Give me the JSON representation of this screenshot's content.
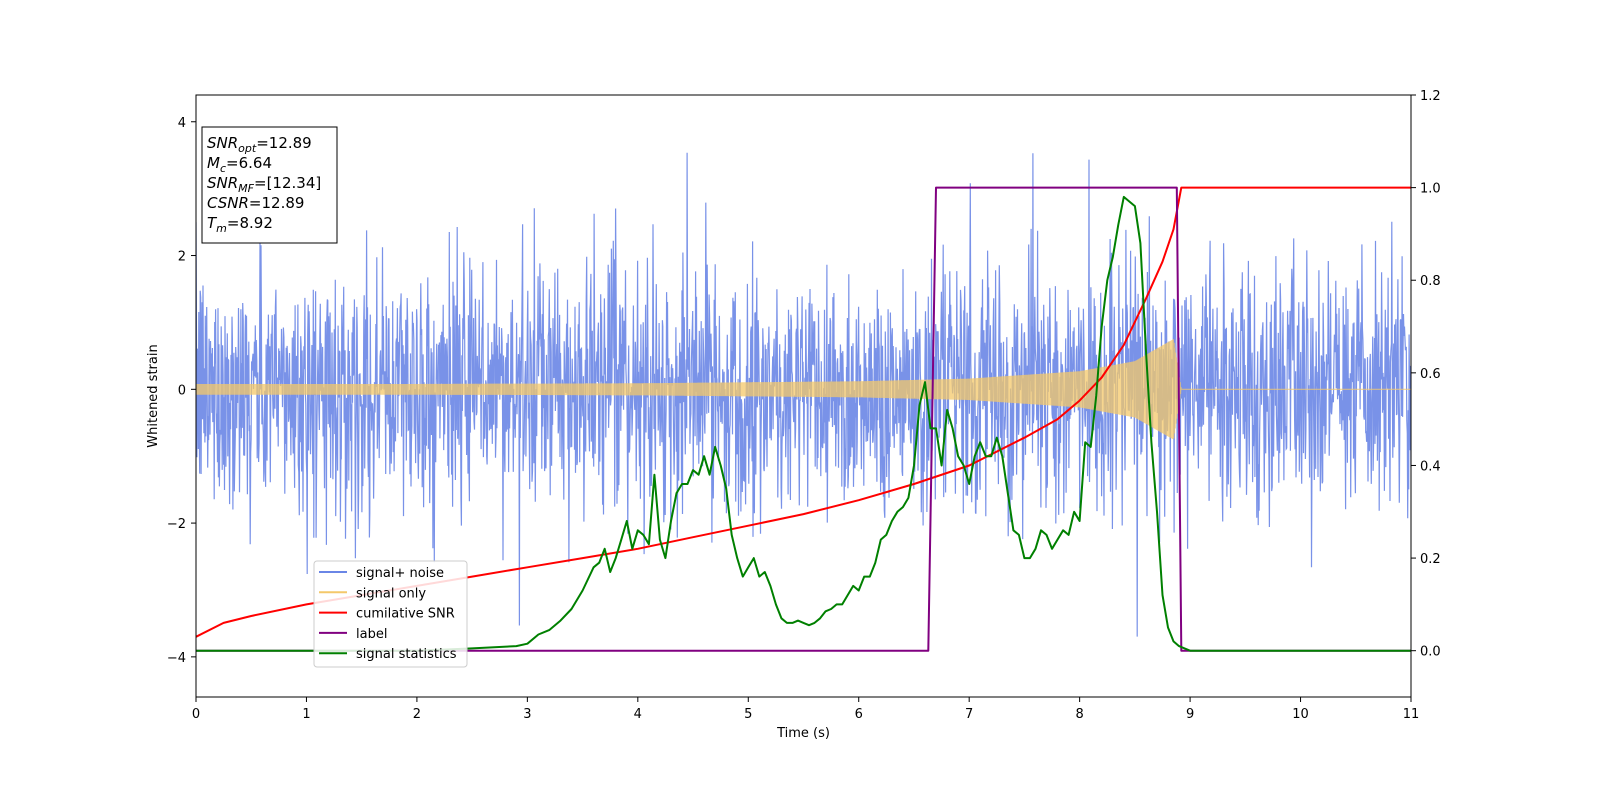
{
  "chart_data": {
    "type": "line",
    "xlabel": "Time (s)",
    "ylabel": "Whitened strain",
    "xlim": [
      0,
      11
    ],
    "ylim_left": [
      -4.6,
      4.4
    ],
    "ylim_right": [
      -0.1,
      1.2
    ],
    "x_ticks": [
      0,
      1,
      2,
      3,
      4,
      5,
      6,
      7,
      8,
      9,
      10,
      11
    ],
    "y_left_ticks": [
      -4,
      -2,
      0,
      2,
      4
    ],
    "y_right_ticks": [
      0.0,
      0.2,
      0.4,
      0.6,
      0.8,
      1.0,
      1.2
    ],
    "info_box": [
      {
        "base": "SNR",
        "sub": "opt",
        "value": "=12.89"
      },
      {
        "base": "M",
        "sub": "c",
        "value": "=6.64"
      },
      {
        "base": "SNR",
        "sub": "MF",
        "value": "=[12.34]"
      },
      {
        "base": "CSNR",
        "sub": "",
        "value": "=12.89"
      },
      {
        "base": "T",
        "sub": "m",
        "value": "=8.92"
      }
    ],
    "legend_position": "lower-left",
    "series": [
      {
        "name": "signal+ noise",
        "axis": "left",
        "color": "#6a86e6",
        "description_stats": {
          "std": 0.9,
          "x_range": [
            0,
            11
          ]
        }
      },
      {
        "name": "signal only",
        "axis": "left",
        "color": "#f4c86a",
        "amplitude_envelope": {
          "x": [
            0,
            2,
            4,
            6,
            7,
            8,
            8.5,
            8.85,
            8.92,
            11
          ],
          "amp": [
            0.08,
            0.08,
            0.09,
            0.12,
            0.16,
            0.27,
            0.42,
            0.75,
            0.0,
            0.0
          ]
        }
      },
      {
        "name": "cumilative SNR",
        "axis": "right",
        "color": "#ff0000",
        "x": [
          0,
          0.25,
          0.5,
          1,
          1.5,
          2,
          2.5,
          3,
          3.5,
          4,
          4.5,
          5,
          5.5,
          6,
          6.5,
          7,
          7.5,
          7.8,
          8,
          8.2,
          8.4,
          8.6,
          8.75,
          8.85,
          8.92,
          11
        ],
        "values": [
          0.03,
          0.06,
          0.075,
          0.1,
          0.12,
          0.14,
          0.16,
          0.18,
          0.2,
          0.22,
          0.245,
          0.27,
          0.295,
          0.325,
          0.36,
          0.4,
          0.46,
          0.5,
          0.54,
          0.59,
          0.66,
          0.76,
          0.84,
          0.91,
          1.0,
          1.0
        ]
      },
      {
        "name": "label",
        "axis": "right",
        "color": "#800080",
        "x": [
          0,
          6.63,
          6.7,
          8.88,
          8.92,
          11
        ],
        "values": [
          0.0,
          0.0,
          1.0,
          1.0,
          0.0,
          0.0
        ]
      },
      {
        "name": "signal statistics",
        "axis": "right",
        "color": "#008000",
        "x": [
          0,
          1,
          2,
          2.5,
          2.9,
          3.0,
          3.1,
          3.2,
          3.3,
          3.4,
          3.5,
          3.6,
          3.65,
          3.7,
          3.75,
          3.8,
          3.85,
          3.9,
          3.95,
          4.0,
          4.05,
          4.1,
          4.15,
          4.2,
          4.25,
          4.3,
          4.35,
          4.4,
          4.45,
          4.5,
          4.55,
          4.6,
          4.65,
          4.7,
          4.75,
          4.8,
          4.85,
          4.9,
          4.95,
          5.0,
          5.05,
          5.1,
          5.15,
          5.2,
          5.25,
          5.3,
          5.35,
          5.4,
          5.45,
          5.5,
          5.55,
          5.6,
          5.65,
          5.7,
          5.75,
          5.8,
          5.85,
          5.9,
          5.95,
          6.0,
          6.05,
          6.1,
          6.15,
          6.2,
          6.25,
          6.3,
          6.35,
          6.4,
          6.45,
          6.5,
          6.55,
          6.6,
          6.65,
          6.7,
          6.75,
          6.8,
          6.85,
          6.9,
          6.95,
          7.0,
          7.05,
          7.1,
          7.15,
          7.2,
          7.25,
          7.3,
          7.35,
          7.4,
          7.45,
          7.5,
          7.55,
          7.6,
          7.65,
          7.7,
          7.75,
          7.8,
          7.85,
          7.9,
          7.95,
          8.0,
          8.05,
          8.1,
          8.15,
          8.2,
          8.25,
          8.3,
          8.35,
          8.4,
          8.45,
          8.5,
          8.55,
          8.6,
          8.65,
          8.7,
          8.75,
          8.8,
          8.85,
          8.9,
          8.95,
          9.0,
          9.2,
          10,
          11
        ],
        "values": [
          0.0,
          0.0,
          0.0,
          0.005,
          0.01,
          0.015,
          0.035,
          0.045,
          0.065,
          0.09,
          0.13,
          0.18,
          0.19,
          0.22,
          0.17,
          0.2,
          0.24,
          0.28,
          0.22,
          0.26,
          0.25,
          0.23,
          0.38,
          0.24,
          0.2,
          0.28,
          0.34,
          0.36,
          0.36,
          0.39,
          0.38,
          0.42,
          0.38,
          0.44,
          0.4,
          0.35,
          0.25,
          0.2,
          0.16,
          0.18,
          0.2,
          0.16,
          0.17,
          0.14,
          0.1,
          0.07,
          0.06,
          0.06,
          0.065,
          0.06,
          0.055,
          0.06,
          0.07,
          0.085,
          0.09,
          0.1,
          0.1,
          0.12,
          0.14,
          0.13,
          0.16,
          0.16,
          0.19,
          0.24,
          0.25,
          0.28,
          0.3,
          0.31,
          0.33,
          0.4,
          0.53,
          0.58,
          0.48,
          0.48,
          0.4,
          0.52,
          0.48,
          0.42,
          0.4,
          0.36,
          0.42,
          0.45,
          0.42,
          0.42,
          0.46,
          0.42,
          0.34,
          0.26,
          0.25,
          0.2,
          0.2,
          0.22,
          0.26,
          0.25,
          0.22,
          0.24,
          0.26,
          0.25,
          0.3,
          0.28,
          0.45,
          0.44,
          0.55,
          0.7,
          0.8,
          0.85,
          0.92,
          0.98,
          0.97,
          0.96,
          0.88,
          0.65,
          0.45,
          0.3,
          0.12,
          0.05,
          0.02,
          0.01,
          0.005,
          0.0,
          0.0,
          0.0,
          0.0
        ]
      }
    ]
  }
}
